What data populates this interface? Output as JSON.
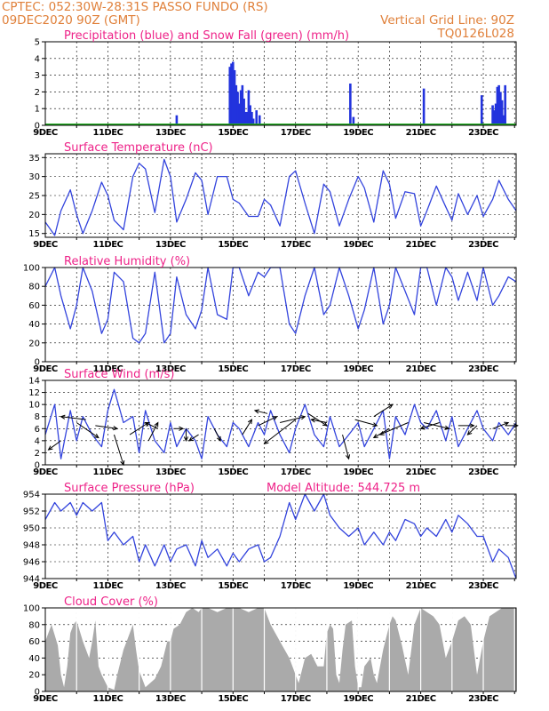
{
  "header": {
    "line1_left": "CPTEC:  052:30W-28:31S  PASSO FUNDO (RS)",
    "line2_left": "09DEC2020 90Z (GMT)",
    "line1_right": "Vertical Grid Line: 90Z",
    "line2_right": "TQ0126L028"
  },
  "x_axis": {
    "ticks": [
      "9DEC",
      "11DEC",
      "13DEC",
      "15DEC",
      "17DEC",
      "19DEC",
      "21DEC",
      "23DEC"
    ],
    "range_days": [
      9,
      24.05
    ]
  },
  "colors": {
    "line": "#3344dd",
    "precip": "#2233dd",
    "snow": "#22aa22",
    "cloud": "#aaaaaa",
    "title": "#ee2288",
    "header": "#e0803a",
    "grid": "#000000"
  },
  "chart_data": [
    {
      "type": "bar",
      "title": "Precipitation (blue) and Snow Fall (green) (mm/h)",
      "ylim": [
        0,
        5
      ],
      "yticks": [
        0,
        1,
        2,
        3,
        4,
        5
      ],
      "series": [
        {
          "name": "Precipitation",
          "points": [
            [
              13.2,
              0.6
            ],
            [
              14.9,
              3.5
            ],
            [
              14.95,
              3.7
            ],
            [
              15.0,
              3.8
            ],
            [
              15.05,
              3.3
            ],
            [
              15.1,
              2.4
            ],
            [
              15.15,
              2.0
            ],
            [
              15.2,
              1.3
            ],
            [
              15.25,
              2.1
            ],
            [
              15.3,
              2.4
            ],
            [
              15.35,
              1.6
            ],
            [
              15.4,
              0.8
            ],
            [
              15.45,
              0.8
            ],
            [
              15.5,
              2.1
            ],
            [
              15.55,
              1.2
            ],
            [
              15.6,
              0.8
            ],
            [
              15.65,
              0.4
            ],
            [
              15.75,
              0.9
            ],
            [
              15.85,
              0.6
            ],
            [
              18.75,
              2.5
            ],
            [
              18.85,
              0.5
            ],
            [
              21.1,
              2.2
            ],
            [
              22.95,
              1.8
            ],
            [
              23.3,
              1.2
            ],
            [
              23.35,
              0.9
            ],
            [
              23.4,
              1.3
            ],
            [
              23.45,
              2.3
            ],
            [
              23.5,
              2.4
            ],
            [
              23.55,
              2.0
            ],
            [
              23.6,
              1.5
            ],
            [
              23.65,
              0.6
            ],
            [
              23.7,
              2.4
            ]
          ]
        },
        {
          "name": "Snow Fall",
          "values": []
        }
      ]
    },
    {
      "type": "line",
      "title": "Surface Temperature (nC)",
      "ylim": [
        14,
        36
      ],
      "yticks": [
        15,
        20,
        25,
        30,
        35
      ],
      "x": [
        9,
        9.3,
        9.5,
        9.8,
        10,
        10.2,
        10.5,
        10.8,
        11.0,
        11.2,
        11.5,
        11.8,
        12.0,
        12.2,
        12.5,
        12.8,
        13.0,
        13.2,
        13.5,
        13.8,
        14.0,
        14.2,
        14.5,
        14.8,
        15.0,
        15.2,
        15.5,
        15.8,
        16.0,
        16.2,
        16.5,
        16.8,
        17.0,
        17.3,
        17.6,
        17.9,
        18.1,
        18.4,
        18.7,
        19.0,
        19.2,
        19.5,
        19.8,
        20.0,
        20.2,
        20.5,
        20.8,
        21.0,
        21.2,
        21.5,
        21.8,
        22.0,
        22.2,
        22.5,
        22.8,
        23.0,
        23.3,
        23.5,
        23.8,
        24.05
      ],
      "series": [
        {
          "values": [
            18,
            14.5,
            21,
            26.5,
            20,
            15,
            21,
            28.5,
            25,
            18.5,
            16,
            30,
            33.5,
            32,
            20.5,
            34.5,
            30,
            18,
            24,
            31,
            29,
            20,
            30,
            30,
            24,
            23,
            19.5,
            19.5,
            24,
            22.5,
            17,
            30,
            31.5,
            23,
            15,
            28,
            26,
            17,
            24,
            30,
            27,
            18,
            31.5,
            28,
            19,
            26,
            25.5,
            17,
            21,
            27.5,
            22,
            18.5,
            25.5,
            20,
            25,
            19.5,
            24,
            29,
            24,
            21
          ]
        }
      ]
    },
    {
      "type": "line",
      "title": "Relative Humidity (%)",
      "ylim": [
        0,
        100
      ],
      "yticks": [
        0,
        20,
        40,
        60,
        80,
        100
      ],
      "x": [
        9,
        9.3,
        9.5,
        9.8,
        10,
        10.2,
        10.5,
        10.8,
        11.0,
        11.2,
        11.5,
        11.8,
        12.0,
        12.2,
        12.5,
        12.8,
        13.0,
        13.2,
        13.5,
        13.8,
        14.0,
        14.2,
        14.5,
        14.8,
        15.0,
        15.2,
        15.5,
        15.8,
        16.0,
        16.2,
        16.5,
        16.8,
        17.0,
        17.3,
        17.6,
        17.9,
        18.1,
        18.4,
        18.7,
        19.0,
        19.2,
        19.5,
        19.8,
        20.0,
        20.2,
        20.5,
        20.8,
        21.0,
        21.2,
        21.5,
        21.8,
        22.0,
        22.2,
        22.5,
        22.8,
        23.0,
        23.3,
        23.5,
        23.8,
        24.05
      ],
      "series": [
        {
          "values": [
            80,
            100,
            70,
            35,
            60,
            100,
            75,
            30,
            45,
            95,
            85,
            25,
            20,
            30,
            95,
            20,
            30,
            90,
            50,
            35,
            55,
            100,
            50,
            45,
            100,
            100,
            70,
            95,
            90,
            100,
            100,
            40,
            30,
            70,
            100,
            50,
            60,
            100,
            70,
            35,
            55,
            100,
            40,
            60,
            100,
            75,
            50,
            100,
            100,
            60,
            100,
            90,
            65,
            95,
            65,
            100,
            60,
            70,
            90,
            85
          ]
        }
      ]
    },
    {
      "type": "line",
      "title": "Surface Wind (m/s)",
      "ylim": [
        0,
        14
      ],
      "yticks": [
        0,
        2,
        4,
        6,
        8,
        10,
        12,
        14
      ],
      "x": [
        9,
        9.3,
        9.5,
        9.8,
        10,
        10.2,
        10.5,
        10.8,
        11.0,
        11.2,
        11.5,
        11.8,
        12.0,
        12.2,
        12.5,
        12.8,
        13.0,
        13.2,
        13.5,
        13.8,
        14.0,
        14.2,
        14.5,
        14.8,
        15.0,
        15.2,
        15.5,
        15.8,
        16.0,
        16.2,
        16.5,
        16.8,
        17.0,
        17.3,
        17.6,
        17.9,
        18.1,
        18.4,
        18.7,
        19.0,
        19.2,
        19.5,
        19.8,
        20.0,
        20.2,
        20.5,
        20.8,
        21.0,
        21.2,
        21.5,
        21.8,
        22.0,
        22.2,
        22.5,
        22.8,
        23.0,
        23.3,
        23.5,
        23.8,
        24.05
      ],
      "series": [
        {
          "values": [
            5,
            10,
            1,
            9,
            4,
            8,
            5,
            3,
            9,
            12.5,
            7,
            8,
            2,
            9,
            4,
            2,
            7,
            3,
            6,
            4,
            1,
            8,
            5,
            3,
            7,
            6,
            3,
            7,
            5,
            9,
            5,
            2,
            6,
            10,
            5,
            3,
            8,
            3,
            5,
            7,
            3,
            6,
            9,
            1,
            8,
            5,
            10,
            7,
            6,
            9,
            4,
            8,
            3,
            6,
            9,
            6,
            4,
            7,
            5,
            7
          ]
        }
      ],
      "arrows": [
        [
          9.5,
          4,
          -0.4,
          -1.5
        ],
        [
          10.0,
          7,
          0.7,
          -2.5
        ],
        [
          10.3,
          7.5,
          -0.8,
          0.5
        ],
        [
          10.6,
          6.5,
          0.7,
          -0.5
        ],
        [
          11.2,
          5,
          0.3,
          -5
        ],
        [
          11.7,
          5,
          0.6,
          2
        ],
        [
          12.3,
          4,
          0.3,
          3
        ],
        [
          12.6,
          6,
          -0.4,
          1
        ],
        [
          13.1,
          6,
          0.3,
          0
        ],
        [
          13.5,
          6,
          0,
          -2
        ],
        [
          13.9,
          5,
          -0.3,
          -1
        ],
        [
          14.4,
          6,
          0.2,
          -2
        ],
        [
          15.3,
          5,
          0.3,
          2.5
        ],
        [
          15.8,
          6.5,
          0.6,
          1.5
        ],
        [
          16.1,
          8.5,
          -0.4,
          0.5
        ],
        [
          16.5,
          7,
          0.8,
          1
        ],
        [
          17.0,
          7.5,
          -1.0,
          -4
        ],
        [
          17.4,
          8.5,
          0.6,
          -2
        ],
        [
          18.0,
          7,
          -0.5,
          0.5
        ],
        [
          18.5,
          5,
          0.2,
          -4
        ],
        [
          18.9,
          7.5,
          0.7,
          -1
        ],
        [
          19.5,
          8,
          0.6,
          2
        ],
        [
          20.0,
          6,
          -0.5,
          -1.5
        ],
        [
          20.6,
          7,
          -0.9,
          -2
        ],
        [
          21.1,
          7,
          0.8,
          -1
        ],
        [
          21.6,
          7,
          -0.6,
          -1
        ],
        [
          22.2,
          6.5,
          0.5,
          0
        ],
        [
          22.8,
          6.5,
          -0.3,
          -1.5
        ],
        [
          23.3,
          6,
          0.5,
          1
        ],
        [
          23.7,
          6.5,
          0.4,
          0
        ]
      ]
    },
    {
      "type": "line",
      "title": "Surface Pressure (hPa)",
      "annotation": "Model Altitude: 544.725 m",
      "ylim": [
        944,
        954
      ],
      "yticks": [
        944,
        946,
        948,
        950,
        952,
        954
      ],
      "x": [
        9,
        9.3,
        9.5,
        9.8,
        10,
        10.2,
        10.5,
        10.8,
        11.0,
        11.2,
        11.5,
        11.8,
        12.0,
        12.2,
        12.5,
        12.8,
        13.0,
        13.2,
        13.5,
        13.8,
        14.0,
        14.2,
        14.5,
        14.8,
        15.0,
        15.2,
        15.5,
        15.8,
        16.0,
        16.2,
        16.5,
        16.8,
        17.0,
        17.3,
        17.6,
        17.9,
        18.1,
        18.4,
        18.7,
        19.0,
        19.2,
        19.5,
        19.8,
        20.0,
        20.2,
        20.5,
        20.8,
        21.0,
        21.2,
        21.5,
        21.8,
        22.0,
        22.2,
        22.5,
        22.8,
        23.0,
        23.3,
        23.5,
        23.8,
        24.05
      ],
      "series": [
        {
          "values": [
            951,
            953,
            952,
            953,
            951.5,
            953,
            952,
            953,
            948.5,
            949.5,
            948,
            949,
            946,
            948,
            945.5,
            948,
            946,
            947.5,
            948,
            945.5,
            948.5,
            946.5,
            947.5,
            945.5,
            947,
            946,
            947.5,
            948,
            946,
            946.5,
            949,
            953,
            951,
            954,
            952,
            954,
            951.5,
            950,
            949,
            950,
            948,
            949.5,
            948,
            949.5,
            948.5,
            951,
            950.5,
            949,
            950,
            949,
            951,
            949.5,
            951.5,
            950.5,
            949,
            949,
            946,
            947.5,
            946.5,
            944
          ]
        }
      ]
    },
    {
      "type": "area",
      "title": "Cloud Cover (%)",
      "ylim": [
        0,
        100
      ],
      "yticks": [
        0,
        20,
        40,
        60,
        80,
        100
      ],
      "x": [
        9.0,
        9.2,
        9.4,
        9.5,
        9.6,
        9.7,
        9.8,
        9.9,
        10.0,
        10.2,
        10.4,
        10.5,
        10.6,
        10.7,
        10.8,
        11.0,
        11.2,
        11.3,
        11.5,
        11.6,
        11.7,
        11.8,
        11.9,
        12.0,
        12.2,
        12.5,
        12.7,
        12.9,
        13.0,
        13.1,
        13.3,
        13.5,
        13.7,
        13.9,
        14.0,
        14.2,
        14.5,
        14.8,
        15.0,
        15.2,
        15.5,
        15.8,
        16.0,
        16.2,
        16.5,
        16.8,
        17.0,
        17.1,
        17.3,
        17.5,
        17.7,
        17.9,
        18.0,
        18.1,
        18.2,
        18.3,
        18.4,
        18.5,
        18.6,
        18.8,
        18.9,
        19.0,
        19.1,
        19.2,
        19.4,
        19.5,
        19.6,
        19.8,
        20.0,
        20.1,
        20.2,
        20.4,
        20.6,
        20.8,
        21.0,
        21.2,
        21.4,
        21.6,
        21.8,
        22.0,
        22.2,
        22.4,
        22.6,
        22.8,
        23.0,
        23.2,
        23.4,
        23.6,
        23.8,
        24.05
      ],
      "series": [
        {
          "values": [
            60,
            80,
            55,
            20,
            5,
            30,
            70,
            80,
            85,
            60,
            40,
            60,
            85,
            30,
            20,
            5,
            2,
            20,
            50,
            60,
            70,
            80,
            50,
            25,
            5,
            15,
            30,
            60,
            60,
            75,
            80,
            95,
            100,
            95,
            100,
            100,
            95,
            100,
            100,
            100,
            95,
            100,
            100,
            80,
            60,
            40,
            20,
            10,
            40,
            45,
            30,
            30,
            70,
            80,
            75,
            20,
            10,
            50,
            80,
            85,
            30,
            5,
            5,
            30,
            40,
            20,
            10,
            50,
            80,
            90,
            85,
            55,
            20,
            80,
            100,
            95,
            90,
            80,
            40,
            60,
            85,
            90,
            80,
            20,
            60,
            90,
            95,
            100,
            100,
            100
          ]
        }
      ]
    }
  ]
}
